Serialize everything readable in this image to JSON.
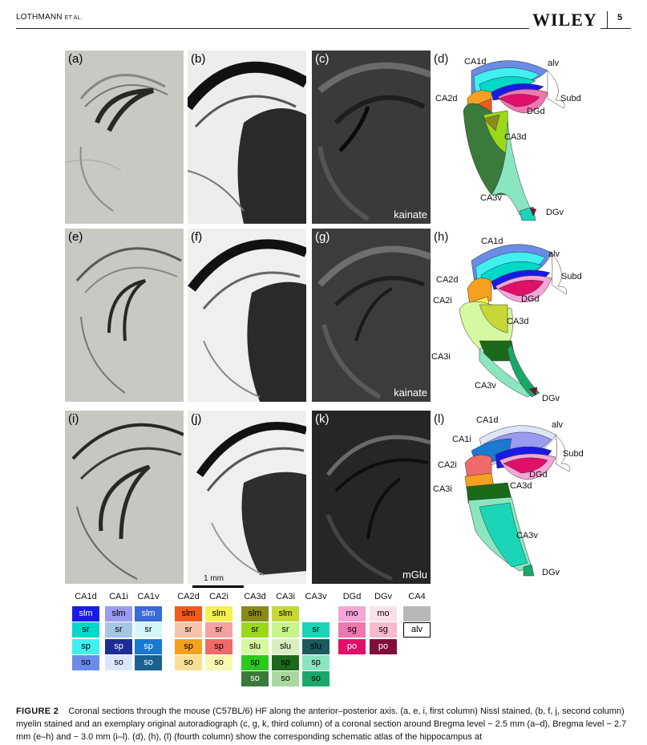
{
  "header": {
    "author": "LOTHMANN",
    "etal": "ET AL.",
    "journal": "WILEY",
    "page": "5"
  },
  "panels": {
    "a": "(a)",
    "b": "(b)",
    "c": "(c)",
    "d": "(d)",
    "e": "(e)",
    "f": "(f)",
    "g": "(g)",
    "h": "(h)",
    "i": "(i)",
    "j": "(j)",
    "k": "(k)",
    "l": "(l)"
  },
  "tags": {
    "c": "kainate",
    "g": "kainate",
    "k": "mGlu"
  },
  "atlas_d": {
    "CA1d": "CA1d",
    "alv": "alv",
    "CA2d": "CA2d",
    "Subd": "Subd",
    "DGd": "DGd",
    "CA3d": "CA3d",
    "CA3v": "CA3v",
    "DGv": "DGv"
  },
  "atlas_h": {
    "CA1d": "CA1d",
    "alv": "alv",
    "CA2d": "CA2d",
    "Subd": "Subd",
    "CA2i": "CA2i",
    "DGd": "DGd",
    "CA3d": "CA3d",
    "CA3i": "CA3i",
    "CA3v": "CA3v",
    "DGv": "DGv"
  },
  "atlas_l": {
    "CA1d": "CA1d",
    "alv": "alv",
    "CA1i": "CA1i",
    "Subd": "Subd",
    "CA2i": "CA2i",
    "DGd": "DGd",
    "CA3i": "CA3i",
    "CA3d": "CA3d",
    "CA3v": "CA3v",
    "DGv": "DGv"
  },
  "scalebar": "1 mm",
  "legend": {
    "columns": [
      {
        "head": "CA1d",
        "cells": [
          {
            "t": "slm",
            "bg": "#1a1ae6",
            "fg": "#ffffff"
          },
          {
            "t": "sr",
            "bg": "#00d8c8",
            "fg": "#000000"
          },
          {
            "t": "sp",
            "bg": "#40f0f0",
            "fg": "#000000"
          },
          {
            "t": "so",
            "bg": "#6a8ce6",
            "fg": "#000000"
          }
        ]
      },
      {
        "head": "CA1i",
        "cells": [
          {
            "t": "slm",
            "bg": "#9a9af0",
            "fg": "#000000"
          },
          {
            "t": "sr",
            "bg": "#a6c6e6",
            "fg": "#000000"
          },
          {
            "t": "sp",
            "bg": "#1c2e96",
            "fg": "#ffffff"
          },
          {
            "t": "so",
            "bg": "#dce6fa",
            "fg": "#000000"
          }
        ]
      },
      {
        "head": "CA1v",
        "cells": [
          {
            "t": "slm",
            "bg": "#3a6ad8",
            "fg": "#ffffff"
          },
          {
            "t": "sr",
            "bg": "#d4f6f6",
            "fg": "#000000"
          },
          {
            "t": "sp",
            "bg": "#1a7ad0",
            "fg": "#ffffff"
          },
          {
            "t": "so",
            "bg": "#1a6090",
            "fg": "#ffffff"
          }
        ]
      },
      {
        "head": "CA2d",
        "cells": [
          {
            "t": "slm",
            "bg": "#f05a1a",
            "fg": "#000000"
          },
          {
            "t": "sr",
            "bg": "#f6c4aa",
            "fg": "#000000"
          },
          {
            "t": "sp",
            "bg": "#f6a020",
            "fg": "#000000"
          },
          {
            "t": "so",
            "bg": "#f8de96",
            "fg": "#000000"
          }
        ]
      },
      {
        "head": "CA2i",
        "cells": [
          {
            "t": "slm",
            "bg": "#f6f050",
            "fg": "#000000"
          },
          {
            "t": "sr",
            "bg": "#f6a0a0",
            "fg": "#000000"
          },
          {
            "t": "sp",
            "bg": "#f06a6a",
            "fg": "#000000"
          },
          {
            "t": "so",
            "bg": "#f8f8b0",
            "fg": "#000000"
          }
        ]
      },
      {
        "head": "CA3d",
        "cells": [
          {
            "t": "slm",
            "bg": "#8a8a1a",
            "fg": "#000000"
          },
          {
            "t": "sr",
            "bg": "#9ad81a",
            "fg": "#000000"
          },
          {
            "t": "slu",
            "bg": "#d6f8a0",
            "fg": "#000000"
          },
          {
            "t": "sp",
            "bg": "#2aca1a",
            "fg": "#000000"
          },
          {
            "t": "so",
            "bg": "#3a7a3a",
            "fg": "#ffffff"
          }
        ]
      },
      {
        "head": "CA3i",
        "cells": [
          {
            "t": "slm",
            "bg": "#c6d836",
            "fg": "#000000"
          },
          {
            "t": "sr",
            "bg": "#c6f68a",
            "fg": "#000000"
          },
          {
            "t": "slu",
            "bg": "#d8f0c0",
            "fg": "#000000"
          },
          {
            "t": "sp",
            "bg": "#1a6a1a",
            "fg": "#000000"
          },
          {
            "t": "so",
            "bg": "#a8d8a0",
            "fg": "#000000"
          }
        ]
      },
      {
        "head": "CA3v",
        "cells": [
          {
            "t": "",
            "bg": "#ffffff",
            "fg": "#000000"
          },
          {
            "t": "sr",
            "bg": "#1ad6b6",
            "fg": "#000000"
          },
          {
            "t": "slu",
            "bg": "#1a5a5a",
            "fg": "#000000"
          },
          {
            "t": "sp",
            "bg": "#8ae6c0",
            "fg": "#000000"
          },
          {
            "t": "so",
            "bg": "#1aa86a",
            "fg": "#000000"
          }
        ]
      },
      {
        "head": "DGd",
        "cells": [
          {
            "t": "mo",
            "bg": "#f6a6d6",
            "fg": "#000000"
          },
          {
            "t": "sg",
            "bg": "#f076b0",
            "fg": "#000000"
          },
          {
            "t": "po",
            "bg": "#e0106a",
            "fg": "#ffffff"
          }
        ]
      },
      {
        "head": "DGv",
        "cells": [
          {
            "t": "mo",
            "bg": "#fbe0ec",
            "fg": "#000000"
          },
          {
            "t": "sg",
            "bg": "#f6bccc",
            "fg": "#000000"
          },
          {
            "t": "po",
            "bg": "#80103a",
            "fg": "#ffffff"
          }
        ]
      },
      {
        "head": "CA4",
        "cells": [
          {
            "t": "",
            "bg": "#b8b8b8",
            "fg": "#000000"
          },
          {
            "t": "alv",
            "bg": "#ffffff",
            "fg": "#000000",
            "border": true
          }
        ]
      }
    ]
  },
  "caption": {
    "label": "FIGURE 2",
    "text": "Coronal sections through the mouse (C57BL/6) HF along the anterior–posterior axis. (a, e, i, first column) Nissl stained, (b, f, j, second column) myelin stained and an exemplary original autoradiograph (c, g, k, third column) of a coronal section around Bregma level − 2.5 mm (a–d), Bregma level − 2.7 mm (e–h) and − 3.0 mm (i–l). (d), (h), (l) (fourth column) show the corresponding schematic atlas of the hippocampus at"
  }
}
